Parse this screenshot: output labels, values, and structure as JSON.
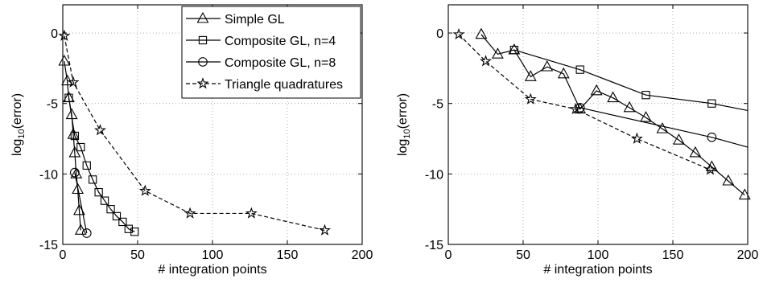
{
  "chart_data": [
    {
      "type": "line",
      "xlabel": "# integration points",
      "ylabel_base": "log",
      "ylabel_sub": "10",
      "ylabel_rest": "(error)",
      "xlim": [
        0,
        200
      ],
      "ylim": [
        -15,
        2
      ],
      "xticks": [
        0,
        50,
        100,
        150,
        200
      ],
      "yticks": [
        0,
        -5,
        -10,
        -15
      ],
      "grid": true,
      "legend": "top-right",
      "series": [
        {
          "name": "Simple GL",
          "marker": "triangle",
          "dash": false,
          "x": [
            1,
            3,
            4,
            6,
            7,
            8,
            9,
            10,
            11,
            12
          ],
          "y": [
            -2.0,
            -3.4,
            -4.6,
            -5.8,
            -7.2,
            -8.5,
            -10.0,
            -11.1,
            -12.6,
            -14.0
          ]
        },
        {
          "name": "Composite GL, n=4",
          "marker": "square",
          "dash": false,
          "x": [
            4,
            8,
            12,
            16,
            20,
            24,
            28,
            32,
            36,
            40,
            44,
            48
          ],
          "y": [
            -4.6,
            -7.3,
            -8.1,
            -9.4,
            -10.4,
            -11.3,
            -11.9,
            -12.5,
            -13.0,
            -13.4,
            -13.9,
            -14.1
          ]
        },
        {
          "name": "Composite GL, n=8",
          "marker": "circle",
          "dash": false,
          "x": [
            8,
            16
          ],
          "y": [
            -9.9,
            -14.2
          ]
        },
        {
          "name": "Triangle quadratures",
          "marker": "star",
          "dash": true,
          "x": [
            1,
            7,
            25,
            55,
            85,
            126,
            175
          ],
          "y": [
            -0.2,
            -3.5,
            -6.9,
            -11.2,
            -12.8,
            -12.8,
            -14.0
          ]
        }
      ]
    },
    {
      "type": "line",
      "xlabel": "# integration points",
      "ylabel_base": "log",
      "ylabel_sub": "10",
      "ylabel_rest": "(error)",
      "xlim": [
        0,
        200
      ],
      "ylim": [
        -15,
        2
      ],
      "xticks": [
        0,
        50,
        100,
        150,
        200
      ],
      "yticks": [
        0,
        -5,
        -10,
        -15
      ],
      "grid": true,
      "series": [
        {
          "name": "Simple GL",
          "marker": "triangle",
          "dash": false,
          "x": [
            22,
            33,
            44,
            55,
            66,
            77,
            88,
            99,
            110,
            121,
            132,
            143,
            154,
            165,
            176,
            187,
            198
          ],
          "y": [
            -0.1,
            -1.5,
            -1.2,
            -3.1,
            -2.4,
            -2.9,
            -5.4,
            -4.1,
            -4.6,
            -5.3,
            -6.0,
            -6.8,
            -7.6,
            -8.5,
            -9.5,
            -10.5,
            -11.5
          ]
        },
        {
          "name": "Composite GL, n=4",
          "marker": "square",
          "dash": false,
          "x": [
            44,
            88,
            132,
            176,
            200
          ],
          "y": [
            -1.2,
            -2.6,
            -4.4,
            -5.0,
            -5.5
          ]
        },
        {
          "name": "Composite GL, n=8",
          "marker": "circle",
          "dash": false,
          "x": [
            88,
            176,
            200
          ],
          "y": [
            -5.3,
            -7.4,
            -8.1
          ]
        },
        {
          "name": "Triangle quadratures",
          "marker": "star",
          "dash": true,
          "x": [
            7,
            25,
            55,
            85,
            126,
            175
          ],
          "y": [
            -0.1,
            -2.0,
            -4.7,
            -5.4,
            -7.5,
            -9.7
          ]
        }
      ]
    }
  ]
}
